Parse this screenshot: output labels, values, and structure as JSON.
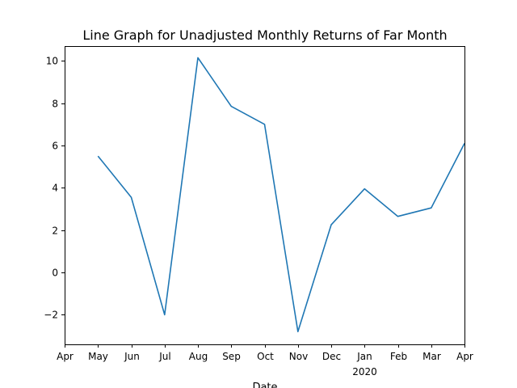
{
  "chart_data": {
    "type": "line",
    "title": "Line Graph for Unadjusted Monthly Returns of Far Month",
    "xlabel": "Date",
    "ylabel": "",
    "x_ticks": [
      "Apr",
      "May",
      "Jun",
      "Jul",
      "Aug",
      "Sep",
      "Oct",
      "Nov",
      "Dec",
      "Jan",
      "Feb",
      "Mar",
      "Apr"
    ],
    "x_tick_sublabels": [
      "",
      "",
      "",
      "",
      "",
      "",
      "",
      "",
      "",
      "2020",
      "",
      "",
      ""
    ],
    "y_ticks": [
      -2,
      0,
      2,
      4,
      6,
      8,
      10
    ],
    "ylim": [
      -3.4,
      10.7
    ],
    "grid": false,
    "series": [
      {
        "x": [
          "May",
          "Jun",
          "Jul",
          "Aug",
          "Sep",
          "Oct",
          "Nov",
          "Dec",
          "Jan",
          "Feb",
          "Mar",
          "Apr"
        ],
        "values": [
          5.5,
          3.55,
          -2.0,
          10.15,
          7.85,
          7.0,
          -2.8,
          2.25,
          3.95,
          2.65,
          3.05,
          6.1
        ]
      }
    ],
    "colors": {
      "line": "#1f77b4"
    }
  }
}
